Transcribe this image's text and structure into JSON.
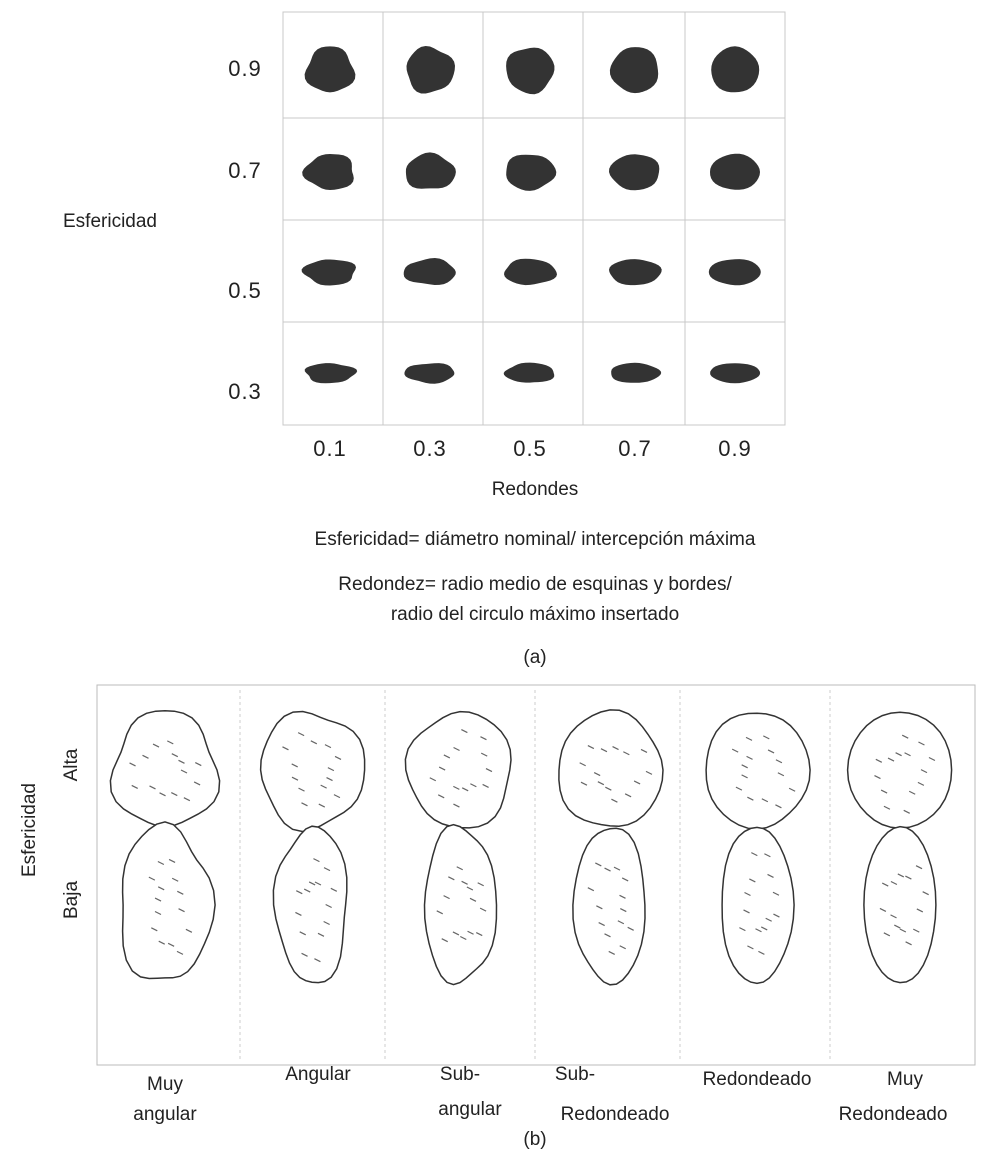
{
  "panel_a": {
    "y_title": "Esfericidad",
    "y_labels": [
      "0.9",
      "0.7",
      "0.5",
      "0.3"
    ],
    "x_labels": [
      "0.1",
      "0.3",
      "0.5",
      "0.7",
      "0.9"
    ],
    "x_title": "Redondes",
    "definitions": [
      "Esfericidad= diámetro nominal/ intercepción máxima",
      "Redondez= radio medio de esquinas y bordes/",
      "radio del circulo máximo insertado"
    ],
    "caption": "(a)"
  },
  "panel_b": {
    "y_title": "Esfericidad",
    "row_labels": [
      "Alta",
      "Baja"
    ],
    "column_labels": [
      [
        "Muy",
        "angular"
      ],
      [
        "Angular"
      ],
      [
        "Sub-",
        "angular"
      ],
      [
        "Sub-",
        "Redondeado"
      ],
      [
        "Redondeado"
      ],
      [
        "Muy",
        "Redondeado"
      ]
    ],
    "caption": "(b)"
  }
}
